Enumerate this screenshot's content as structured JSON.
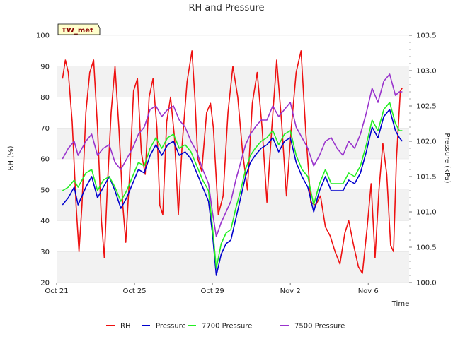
{
  "chart_data": {
    "type": "line",
    "title": "RH and Pressure",
    "site_label": "TW_met",
    "xlabel": "Time",
    "ylabel": "RH (%)",
    "y2label": "Pressure (kPa)",
    "x_domain": [
      "Oct 21",
      "Nov 8"
    ],
    "x_ticks": [
      {
        "label": "Oct 21",
        "day": 0
      },
      {
        "label": "Oct 25",
        "day": 4
      },
      {
        "label": "Oct 29",
        "day": 8
      },
      {
        "label": "Nov 2",
        "day": 12
      },
      {
        "label": "Nov 6",
        "day": 16
      }
    ],
    "ylim": [
      20,
      100
    ],
    "y_ticks": [
      20,
      30,
      40,
      50,
      60,
      70,
      80,
      90,
      100
    ],
    "y2lim": [
      100.0,
      103.5
    ],
    "y2_ticks": [
      "100.0",
      "100.5",
      "101.0",
      "101.5",
      "102.0",
      "102.5",
      "103.0",
      "103.5"
    ],
    "grid": "horizontal bands",
    "legend_position": "bottom",
    "series": [
      {
        "name": "RH",
        "axis": "left",
        "color": "#ee1111",
        "points": [
          [
            0.3,
            86
          ],
          [
            0.45,
            92
          ],
          [
            0.6,
            88
          ],
          [
            0.8,
            72
          ],
          [
            1.0,
            45
          ],
          [
            1.15,
            30
          ],
          [
            1.3,
            45
          ],
          [
            1.5,
            75
          ],
          [
            1.7,
            88
          ],
          [
            1.9,
            92
          ],
          [
            2.1,
            70
          ],
          [
            2.3,
            40
          ],
          [
            2.45,
            28
          ],
          [
            2.6,
            50
          ],
          [
            2.8,
            75
          ],
          [
            3.0,
            90
          ],
          [
            3.2,
            70
          ],
          [
            3.4,
            45
          ],
          [
            3.55,
            33
          ],
          [
            3.75,
            55
          ],
          [
            3.95,
            82
          ],
          [
            4.15,
            86
          ],
          [
            4.35,
            62
          ],
          [
            4.55,
            55
          ],
          [
            4.75,
            80
          ],
          [
            4.95,
            86
          ],
          [
            5.15,
            70
          ],
          [
            5.3,
            45
          ],
          [
            5.45,
            42
          ],
          [
            5.65,
            72
          ],
          [
            5.85,
            80
          ],
          [
            6.05,
            67
          ],
          [
            6.25,
            42
          ],
          [
            6.45,
            65
          ],
          [
            6.7,
            85
          ],
          [
            6.95,
            95
          ],
          [
            7.1,
            80
          ],
          [
            7.25,
            60
          ],
          [
            7.45,
            56
          ],
          [
            7.7,
            75
          ],
          [
            7.9,
            78
          ],
          [
            8.05,
            70
          ],
          [
            8.3,
            42
          ],
          [
            8.55,
            48
          ],
          [
            8.8,
            75
          ],
          [
            9.05,
            90
          ],
          [
            9.3,
            80
          ],
          [
            9.55,
            62
          ],
          [
            9.8,
            50
          ],
          [
            10.05,
            78
          ],
          [
            10.3,
            88
          ],
          [
            10.55,
            70
          ],
          [
            10.8,
            46
          ],
          [
            11.05,
            70
          ],
          [
            11.3,
            92
          ],
          [
            11.55,
            72
          ],
          [
            11.8,
            48
          ],
          [
            12.05,
            70
          ],
          [
            12.3,
            88
          ],
          [
            12.55,
            95
          ],
          [
            12.8,
            68
          ],
          [
            13.05,
            46
          ],
          [
            13.3,
            45
          ],
          [
            13.55,
            48
          ],
          [
            13.8,
            38
          ],
          [
            14.05,
            35
          ],
          [
            14.3,
            30
          ],
          [
            14.55,
            26
          ],
          [
            14.8,
            36
          ],
          [
            15.0,
            40
          ],
          [
            15.25,
            32
          ],
          [
            15.5,
            25
          ],
          [
            15.7,
            23
          ],
          [
            15.95,
            38
          ],
          [
            16.15,
            52
          ],
          [
            16.35,
            28
          ],
          [
            16.55,
            50
          ],
          [
            16.75,
            65
          ],
          [
            16.95,
            55
          ],
          [
            17.15,
            32
          ],
          [
            17.3,
            30
          ],
          [
            17.45,
            60
          ],
          [
            17.65,
            82
          ],
          [
            17.75,
            83
          ]
        ]
      },
      {
        "name": "Pressure",
        "axis": "right",
        "color": "#0000cc",
        "points": [
          [
            0.3,
            101.1
          ],
          [
            0.6,
            101.2
          ],
          [
            0.9,
            101.35
          ],
          [
            1.1,
            101.1
          ],
          [
            1.5,
            101.35
          ],
          [
            1.8,
            101.5
          ],
          [
            2.1,
            101.2
          ],
          [
            2.4,
            101.35
          ],
          [
            2.7,
            101.5
          ],
          [
            3.0,
            101.3
          ],
          [
            3.3,
            101.05
          ],
          [
            3.6,
            101.2
          ],
          [
            3.9,
            101.4
          ],
          [
            4.2,
            101.6
          ],
          [
            4.5,
            101.55
          ],
          [
            4.8,
            101.8
          ],
          [
            5.1,
            101.95
          ],
          [
            5.4,
            101.8
          ],
          [
            5.7,
            101.95
          ],
          [
            6.0,
            102.0
          ],
          [
            6.3,
            101.8
          ],
          [
            6.6,
            101.85
          ],
          [
            6.9,
            101.75
          ],
          [
            7.2,
            101.55
          ],
          [
            7.5,
            101.35
          ],
          [
            7.8,
            101.15
          ],
          [
            8.0,
            100.7
          ],
          [
            8.2,
            100.1
          ],
          [
            8.45,
            100.4
          ],
          [
            8.7,
            100.55
          ],
          [
            8.95,
            100.6
          ],
          [
            9.2,
            100.9
          ],
          [
            9.45,
            101.2
          ],
          [
            9.7,
            101.5
          ],
          [
            9.95,
            101.7
          ],
          [
            10.2,
            101.8
          ],
          [
            10.5,
            101.9
          ],
          [
            10.8,
            101.95
          ],
          [
            11.1,
            102.05
          ],
          [
            11.4,
            101.85
          ],
          [
            11.7,
            102.0
          ],
          [
            12.0,
            102.05
          ],
          [
            12.3,
            101.7
          ],
          [
            12.6,
            101.5
          ],
          [
            12.9,
            101.35
          ],
          [
            13.2,
            101.0
          ],
          [
            13.5,
            101.3
          ],
          [
            13.8,
            101.5
          ],
          [
            14.1,
            101.3
          ],
          [
            14.4,
            101.3
          ],
          [
            14.7,
            101.3
          ],
          [
            15.0,
            101.45
          ],
          [
            15.3,
            101.4
          ],
          [
            15.6,
            101.55
          ],
          [
            15.9,
            101.85
          ],
          [
            16.2,
            102.2
          ],
          [
            16.5,
            102.05
          ],
          [
            16.8,
            102.35
          ],
          [
            17.1,
            102.45
          ],
          [
            17.4,
            102.15
          ],
          [
            17.6,
            102.05
          ],
          [
            17.75,
            102.0
          ]
        ]
      },
      {
        "name": "7700 Pressure",
        "axis": "right",
        "color": "#22ee22",
        "points": [
          [
            0.3,
            101.3
          ],
          [
            0.6,
            101.35
          ],
          [
            0.9,
            101.45
          ],
          [
            1.1,
            101.35
          ],
          [
            1.5,
            101.55
          ],
          [
            1.8,
            101.6
          ],
          [
            2.1,
            101.3
          ],
          [
            2.4,
            101.45
          ],
          [
            2.7,
            101.5
          ],
          [
            3.0,
            101.35
          ],
          [
            3.3,
            101.15
          ],
          [
            3.6,
            101.3
          ],
          [
            3.9,
            101.5
          ],
          [
            4.2,
            101.7
          ],
          [
            4.5,
            101.65
          ],
          [
            4.8,
            101.9
          ],
          [
            5.1,
            102.05
          ],
          [
            5.4,
            101.9
          ],
          [
            5.7,
            102.05
          ],
          [
            6.0,
            102.1
          ],
          [
            6.3,
            101.9
          ],
          [
            6.6,
            101.95
          ],
          [
            6.9,
            101.85
          ],
          [
            7.2,
            101.65
          ],
          [
            7.5,
            101.45
          ],
          [
            7.8,
            101.3
          ],
          [
            8.0,
            100.8
          ],
          [
            8.2,
            100.2
          ],
          [
            8.45,
            100.55
          ],
          [
            8.7,
            100.7
          ],
          [
            8.95,
            100.75
          ],
          [
            9.2,
            101.05
          ],
          [
            9.45,
            101.3
          ],
          [
            9.7,
            101.6
          ],
          [
            9.95,
            101.8
          ],
          [
            10.2,
            101.9
          ],
          [
            10.5,
            102.0
          ],
          [
            10.8,
            102.05
          ],
          [
            11.1,
            102.15
          ],
          [
            11.4,
            101.95
          ],
          [
            11.7,
            102.1
          ],
          [
            12.0,
            102.15
          ],
          [
            12.3,
            101.8
          ],
          [
            12.6,
            101.6
          ],
          [
            12.9,
            101.5
          ],
          [
            13.2,
            101.1
          ],
          [
            13.5,
            101.4
          ],
          [
            13.8,
            101.6
          ],
          [
            14.1,
            101.4
          ],
          [
            14.4,
            101.4
          ],
          [
            14.7,
            101.4
          ],
          [
            15.0,
            101.55
          ],
          [
            15.3,
            101.5
          ],
          [
            15.6,
            101.65
          ],
          [
            15.9,
            101.95
          ],
          [
            16.2,
            102.3
          ],
          [
            16.5,
            102.15
          ],
          [
            16.8,
            102.45
          ],
          [
            17.1,
            102.55
          ],
          [
            17.4,
            102.25
          ],
          [
            17.6,
            102.15
          ],
          [
            17.75,
            102.15
          ]
        ]
      },
      {
        "name": "7500 Pressure",
        "axis": "right",
        "color": "#9933cc",
        "points": [
          [
            0.3,
            101.75
          ],
          [
            0.6,
            101.9
          ],
          [
            0.9,
            102.0
          ],
          [
            1.1,
            101.8
          ],
          [
            1.5,
            102.0
          ],
          [
            1.8,
            102.1
          ],
          [
            2.1,
            101.8
          ],
          [
            2.4,
            101.9
          ],
          [
            2.7,
            101.95
          ],
          [
            3.0,
            101.7
          ],
          [
            3.3,
            101.6
          ],
          [
            3.6,
            101.75
          ],
          [
            3.9,
            101.9
          ],
          [
            4.2,
            102.1
          ],
          [
            4.5,
            102.2
          ],
          [
            4.8,
            102.45
          ],
          [
            5.1,
            102.5
          ],
          [
            5.4,
            102.35
          ],
          [
            5.7,
            102.45
          ],
          [
            6.0,
            102.5
          ],
          [
            6.3,
            102.3
          ],
          [
            6.6,
            102.2
          ],
          [
            6.9,
            102.0
          ],
          [
            7.2,
            101.85
          ],
          [
            7.5,
            101.6
          ],
          [
            7.8,
            101.4
          ],
          [
            8.0,
            101.0
          ],
          [
            8.2,
            100.65
          ],
          [
            8.45,
            100.85
          ],
          [
            8.7,
            101.0
          ],
          [
            8.95,
            101.15
          ],
          [
            9.2,
            101.45
          ],
          [
            9.45,
            101.7
          ],
          [
            9.7,
            101.95
          ],
          [
            9.95,
            102.1
          ],
          [
            10.2,
            102.2
          ],
          [
            10.5,
            102.3
          ],
          [
            10.8,
            102.3
          ],
          [
            11.1,
            102.5
          ],
          [
            11.4,
            102.35
          ],
          [
            11.7,
            102.45
          ],
          [
            12.0,
            102.55
          ],
          [
            12.3,
            102.2
          ],
          [
            12.6,
            102.05
          ],
          [
            12.9,
            101.9
          ],
          [
            13.2,
            101.65
          ],
          [
            13.5,
            101.8
          ],
          [
            13.8,
            102.0
          ],
          [
            14.1,
            102.05
          ],
          [
            14.4,
            101.9
          ],
          [
            14.7,
            101.8
          ],
          [
            15.0,
            102.0
          ],
          [
            15.3,
            101.9
          ],
          [
            15.6,
            102.1
          ],
          [
            15.9,
            102.4
          ],
          [
            16.2,
            102.75
          ],
          [
            16.5,
            102.55
          ],
          [
            16.8,
            102.85
          ],
          [
            17.1,
            102.95
          ],
          [
            17.4,
            102.65
          ],
          [
            17.6,
            102.7
          ],
          [
            17.75,
            102.7
          ]
        ]
      }
    ]
  }
}
